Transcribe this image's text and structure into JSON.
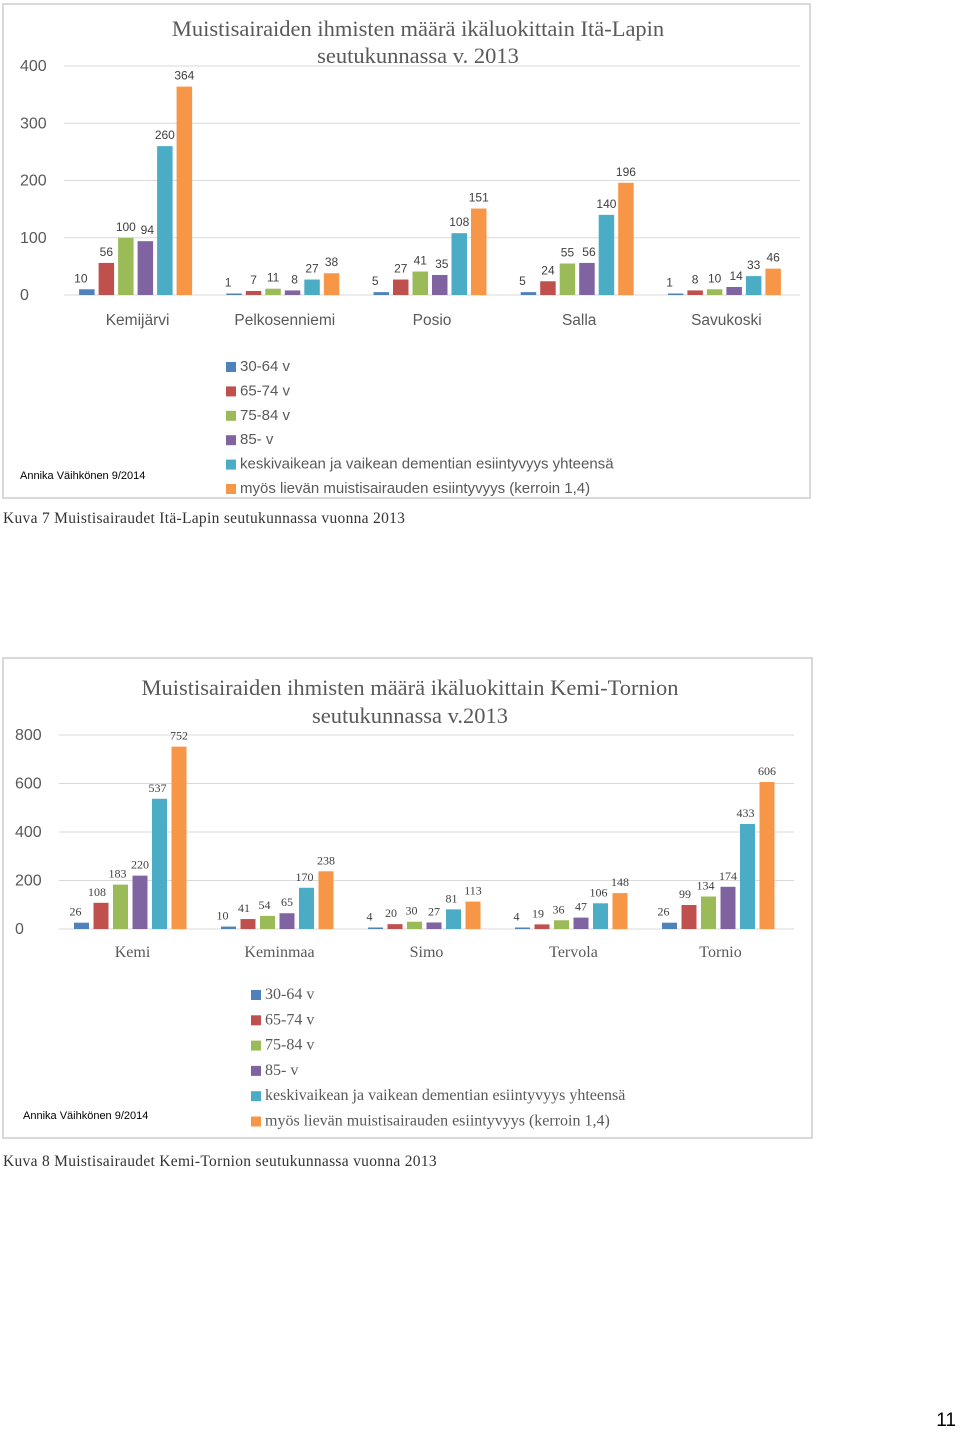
{
  "page": {
    "number": "11"
  },
  "captions": [
    "Kuva 7 Muistisairaudet Itä-Lapin seutukunnassa vuonna 2013",
    "Kuva 8 Muistisairaudet Kemi-Tornion seutukunnassa vuonna 2013"
  ],
  "colors": {
    "series": [
      "#4f81bd",
      "#c0504d",
      "#9bbb59",
      "#8064a2",
      "#4bacc6",
      "#f79646"
    ],
    "axis_text": "#595959",
    "gridline": "#d9d9d9"
  },
  "chart_data": [
    {
      "type": "bar",
      "title_lines": [
        "Muistisairaiden ihmisten määrä ikäluokittain Itä-Lapin",
        "seutukunnassa v. 2013"
      ],
      "xlabel": "",
      "ylabel": "",
      "ylim": [
        0,
        400
      ],
      "yticks": [
        0,
        100,
        200,
        300,
        400
      ],
      "grid": true,
      "legend_position": "bottom",
      "credit": "Annika Väihkönen 9/2014",
      "categories": [
        "Kemijärvi",
        "Pelkosenniemi",
        "Posio",
        "Salla",
        "Savukoski"
      ],
      "series": [
        {
          "name": "30-64 v",
          "values": [
            10,
            1,
            5,
            5,
            1
          ]
        },
        {
          "name": "65-74 v",
          "values": [
            56,
            7,
            27,
            24,
            8
          ]
        },
        {
          "name": "75-84 v",
          "values": [
            100,
            11,
            41,
            55,
            10
          ]
        },
        {
          "name": "85- v",
          "values": [
            94,
            8,
            35,
            56,
            14
          ]
        },
        {
          "name": "keskivaikean ja vaikean dementian esiintyvyys yhteensä",
          "values": [
            260,
            27,
            108,
            140,
            33
          ]
        },
        {
          "name": "myös lievän muistisairauden esiintyvyys (kerroin 1,4)",
          "values": [
            364,
            38,
            151,
            196,
            46
          ]
        }
      ]
    },
    {
      "type": "bar",
      "title_lines": [
        "Muistisairaiden ihmisten määrä ikäluokittain Kemi-Tornion",
        "seutukunnassa v.2013"
      ],
      "xlabel": "",
      "ylabel": "",
      "ylim": [
        0,
        800
      ],
      "yticks": [
        0,
        200,
        400,
        600,
        800
      ],
      "grid": true,
      "legend_position": "bottom",
      "credit": "Annika Väihkönen 9/2014",
      "categories": [
        "Kemi",
        "Keminmaa",
        "Simo",
        "Tervola",
        "Tornio"
      ],
      "series": [
        {
          "name": "30-64 v",
          "values": [
            26,
            10,
            4,
            4,
            26
          ]
        },
        {
          "name": "65-74 v",
          "values": [
            108,
            41,
            20,
            19,
            99
          ]
        },
        {
          "name": "75-84 v",
          "values": [
            183,
            54,
            30,
            36,
            134
          ]
        },
        {
          "name": "85- v",
          "values": [
            220,
            65,
            27,
            47,
            174
          ]
        },
        {
          "name": "keskivaikean ja vaikean dementian esiintyvyys yhteensä",
          "values": [
            537,
            170,
            81,
            106,
            433
          ]
        },
        {
          "name": "myös lievän muistisairauden esiintyvyys (kerroin 1,4)",
          "values": [
            752,
            238,
            113,
            148,
            606
          ]
        }
      ]
    }
  ]
}
